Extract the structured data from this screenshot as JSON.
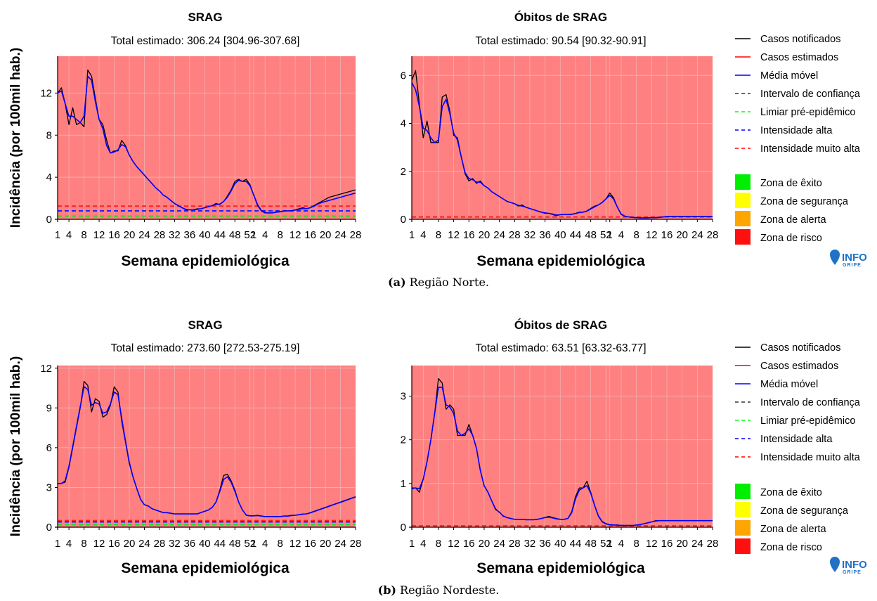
{
  "figure": {
    "captions": [
      {
        "label": "(a)",
        "text": "Região Norte."
      },
      {
        "label": "(b)",
        "text": "Região Nordeste."
      }
    ],
    "ylabel": "Incidência (por 100mil hab.)",
    "xlabel": "Semana epidemiológica",
    "x_tick_labels": [
      "1",
      "4",
      "8",
      "12",
      "16",
      "20",
      "24",
      "28",
      "32",
      "36",
      "40",
      "44",
      "48",
      "52",
      "1",
      "4",
      "8",
      "12",
      "16",
      "20",
      "24",
      "28"
    ],
    "legend_lines": [
      {
        "label": "Casos notificados",
        "color": "#000000",
        "dash": "solid"
      },
      {
        "label": "Casos estimados",
        "color": "#ff0000",
        "dash": "solid"
      },
      {
        "label": "Média móvel",
        "color": "#0000ff",
        "dash": "solid"
      },
      {
        "label": "Intervalo de confiança",
        "color": "#333333",
        "dash": "dashed"
      },
      {
        "label": "Limiar pré-epidêmico",
        "color": "#00ff00",
        "dash": "dashed"
      },
      {
        "label": "Intensidade alta",
        "color": "#0000ff",
        "dash": "dashed"
      },
      {
        "label": "Intensidade muito alta",
        "color": "#ff0000",
        "dash": "dashed"
      }
    ],
    "legend_zones": [
      {
        "label": "Zona de êxito",
        "color": "#00ee00"
      },
      {
        "label": "Zona de segurança",
        "color": "#ffff00"
      },
      {
        "label": "Zona de alerta",
        "color": "#ffa500"
      },
      {
        "label": "Zona de risco",
        "color": "#ff1010"
      }
    ],
    "logo": {
      "main": "INFO",
      "sub": "GRIPE"
    },
    "colors": {
      "risk_background": "#ff8080",
      "grid": "#f0b0b0"
    }
  },
  "chart_data": [
    {
      "type": "line",
      "title": "SRAG",
      "subtitle": "Total estimado: 306.24 [304.96-307.68]",
      "xlabel": "Semana epidemiológica",
      "ylabel": "Incidência (por 100mil hab.)",
      "x": [
        1,
        2,
        3,
        4,
        5,
        6,
        7,
        8,
        9,
        10,
        11,
        12,
        13,
        14,
        15,
        16,
        17,
        18,
        19,
        20,
        21,
        22,
        23,
        24,
        25,
        26,
        27,
        28,
        29,
        30,
        31,
        32,
        33,
        34,
        35,
        36,
        37,
        38,
        39,
        40,
        41,
        42,
        43,
        44,
        45,
        46,
        47,
        48,
        49,
        50,
        51,
        52,
        53,
        54,
        55,
        56,
        57,
        58,
        59,
        60,
        61,
        62,
        63,
        64,
        65,
        66,
        67,
        68,
        69,
        70,
        71,
        72,
        73,
        74,
        75,
        76,
        77,
        78,
        79,
        80
      ],
      "y_ticks": [
        0,
        4,
        8,
        12
      ],
      "ylim": [
        0,
        15.5
      ],
      "series": [
        {
          "name": "Casos notificados",
          "values": [
            12,
            12.5,
            11,
            9,
            10.6,
            9,
            9.2,
            8.8,
            14.2,
            13.6,
            11.5,
            9.5,
            9,
            7.5,
            6.3,
            6.5,
            6.5,
            7.5,
            7,
            6.1,
            5.5,
            5,
            4.6,
            4.2,
            3.8,
            3.4,
            3,
            2.7,
            2.3,
            2.1,
            1.8,
            1.5,
            1.3,
            1.1,
            0.9,
            0.9,
            0.9,
            1,
            1,
            1.1,
            1.2,
            1.3,
            1.5,
            1.4,
            1.7,
            2.2,
            2.8,
            3.6,
            3.8,
            3.6,
            3.8,
            3.3,
            2.3,
            1.3,
            0.8,
            0.6,
            0.6,
            0.6,
            0.7,
            0.7,
            0.8,
            0.8,
            0.8,
            0.9,
            1,
            1.1,
            1,
            1.1,
            1.3,
            1.5,
            1.7,
            1.9,
            2.1,
            2.2,
            2.3,
            2.4,
            2.5,
            2.6,
            2.7,
            2.8
          ]
        },
        {
          "name": "Média móvel",
          "values": [
            12,
            12.2,
            11,
            9.8,
            9.8,
            9.5,
            9.2,
            9.8,
            13.6,
            13.2,
            11.2,
            9.5,
            8.6,
            7,
            6.3,
            6.4,
            6.6,
            7.1,
            6.9,
            6.1,
            5.5,
            5,
            4.6,
            4.2,
            3.8,
            3.4,
            3,
            2.7,
            2.3,
            2.1,
            1.8,
            1.5,
            1.3,
            1.1,
            0.95,
            0.9,
            0.9,
            0.95,
            1,
            1.1,
            1.2,
            1.3,
            1.4,
            1.45,
            1.7,
            2.1,
            2.7,
            3.4,
            3.7,
            3.6,
            3.6,
            3.2,
            2.3,
            1.4,
            0.85,
            0.65,
            0.6,
            0.62,
            0.68,
            0.72,
            0.78,
            0.8,
            0.82,
            0.88,
            0.95,
            1.02,
            1,
            1.1,
            1.25,
            1.45,
            1.6,
            1.7,
            1.8,
            1.9,
            2,
            2.1,
            2.2,
            2.3,
            2.4,
            2.5
          ]
        },
        {
          "name": "Intensidade muito alta",
          "constant": 1.25
        },
        {
          "name": "Intensidade alta",
          "constant": 0.8
        },
        {
          "name": "Limiar pré-epidêmico",
          "constant": 0.3
        }
      ]
    },
    {
      "type": "line",
      "title": "Óbitos de SRAG",
      "subtitle": "Total estimado: 90.54 [90.32-90.91]",
      "xlabel": "Semana epidemiológica",
      "x": [
        1,
        2,
        3,
        4,
        5,
        6,
        7,
        8,
        9,
        10,
        11,
        12,
        13,
        14,
        15,
        16,
        17,
        18,
        19,
        20,
        21,
        22,
        23,
        24,
        25,
        26,
        27,
        28,
        29,
        30,
        31,
        32,
        33,
        34,
        35,
        36,
        37,
        38,
        39,
        40,
        41,
        42,
        43,
        44,
        45,
        46,
        47,
        48,
        49,
        50,
        51,
        52,
        53,
        54,
        55,
        56,
        57,
        58,
        59,
        60,
        61,
        62,
        63,
        64,
        65,
        66,
        67,
        68,
        69,
        70,
        71,
        72,
        73,
        74,
        75,
        76,
        77,
        78,
        79,
        80
      ],
      "y_ticks": [
        0,
        2,
        4,
        6
      ],
      "ylim": [
        0,
        6.8
      ],
      "series": [
        {
          "name": "Casos notificados",
          "values": [
            5.8,
            6.2,
            4.8,
            3.4,
            4.1,
            3.2,
            3.2,
            3.2,
            5.1,
            5.2,
            4.5,
            3.5,
            3.4,
            2.6,
            1.9,
            1.6,
            1.7,
            1.5,
            1.6,
            1.4,
            1.3,
            1.15,
            1.05,
            0.95,
            0.85,
            0.75,
            0.7,
            0.65,
            0.55,
            0.6,
            0.5,
            0.45,
            0.4,
            0.35,
            0.3,
            0.25,
            0.25,
            0.2,
            0.15,
            0.2,
            0.2,
            0.2,
            0.2,
            0.25,
            0.3,
            0.3,
            0.35,
            0.45,
            0.55,
            0.6,
            0.7,
            0.85,
            1.1,
            0.9,
            0.5,
            0.2,
            0.12,
            0.1,
            0.08,
            0.07,
            0.06,
            0.06,
            0.06,
            0.07,
            0.07,
            0.08,
            0.1,
            0.12,
            0.12,
            0.12,
            0.13,
            0.12,
            0.12,
            0.12,
            0.12,
            0.12,
            0.12,
            0.12,
            0.12,
            0.12
          ]
        },
        {
          "name": "Média móvel",
          "values": [
            5.7,
            5.4,
            4.7,
            3.8,
            3.7,
            3.4,
            3.2,
            3.3,
            4.7,
            5,
            4.4,
            3.6,
            3.3,
            2.6,
            1.95,
            1.7,
            1.65,
            1.55,
            1.55,
            1.4,
            1.3,
            1.15,
            1.05,
            0.95,
            0.85,
            0.75,
            0.7,
            0.65,
            0.58,
            0.55,
            0.5,
            0.45,
            0.4,
            0.35,
            0.3,
            0.27,
            0.25,
            0.22,
            0.18,
            0.19,
            0.2,
            0.2,
            0.21,
            0.24,
            0.28,
            0.3,
            0.34,
            0.43,
            0.52,
            0.6,
            0.7,
            0.85,
            1.0,
            0.85,
            0.5,
            0.22,
            0.13,
            0.1,
            0.08,
            0.07,
            0.06,
            0.06,
            0.06,
            0.07,
            0.07,
            0.08,
            0.1,
            0.11,
            0.12,
            0.12,
            0.12,
            0.12,
            0.12,
            0.12,
            0.12,
            0.12,
            0.12,
            0.12,
            0.12,
            0.12
          ]
        },
        {
          "name": "Intensidade muito alta",
          "constant": 0.1
        }
      ]
    },
    {
      "type": "line",
      "title": "SRAG",
      "subtitle": "Total estimado: 273.60 [272.53-275.19]",
      "xlabel": "Semana epidemiológica",
      "ylabel": "Incidência (por 100mil hab.)",
      "x": [
        1,
        2,
        3,
        4,
        5,
        6,
        7,
        8,
        9,
        10,
        11,
        12,
        13,
        14,
        15,
        16,
        17,
        18,
        19,
        20,
        21,
        22,
        23,
        24,
        25,
        26,
        27,
        28,
        29,
        30,
        31,
        32,
        33,
        34,
        35,
        36,
        37,
        38,
        39,
        40,
        41,
        42,
        43,
        44,
        45,
        46,
        47,
        48,
        49,
        50,
        51,
        52,
        53,
        54,
        55,
        56,
        57,
        58,
        59,
        60,
        61,
        62,
        63,
        64,
        65,
        66,
        67,
        68,
        69,
        70,
        71,
        72,
        73,
        74,
        75,
        76,
        77,
        78,
        79,
        80
      ],
      "y_ticks": [
        0,
        3,
        6,
        9,
        12
      ],
      "ylim": [
        0,
        12.2
      ],
      "series": [
        {
          "name": "Casos notificados",
          "values": [
            3.3,
            3.3,
            3.4,
            4.5,
            6,
            7.5,
            9,
            11,
            10.7,
            8.7,
            9.7,
            9.5,
            8.3,
            8.5,
            9.2,
            10.6,
            10.2,
            8,
            6.4,
            4.8,
            3.8,
            2.9,
            2.1,
            1.7,
            1.6,
            1.4,
            1.3,
            1.2,
            1.1,
            1.1,
            1.05,
            1,
            1,
            1,
            1,
            1,
            1,
            1,
            1.1,
            1.2,
            1.3,
            1.5,
            1.9,
            2.8,
            3.9,
            4,
            3.5,
            2.8,
            1.9,
            1.3,
            0.9,
            0.85,
            0.85,
            0.9,
            0.85,
            0.8,
            0.8,
            0.8,
            0.8,
            0.8,
            0.85,
            0.85,
            0.9,
            0.9,
            0.95,
            1,
            1,
            1.1,
            1.2,
            1.3,
            1.4,
            1.5,
            1.6,
            1.7,
            1.8,
            1.9,
            2,
            2.1,
            2.2,
            2.3
          ]
        },
        {
          "name": "Média móvel",
          "values": [
            3.3,
            3.3,
            3.5,
            4.6,
            6.1,
            7.6,
            9.1,
            10.6,
            10.4,
            9.2,
            9.4,
            9.3,
            8.6,
            8.7,
            9.3,
            10.2,
            10,
            8.2,
            6.5,
            4.9,
            3.8,
            2.9,
            2.1,
            1.7,
            1.6,
            1.4,
            1.3,
            1.2,
            1.1,
            1.1,
            1.05,
            1,
            1,
            1,
            1,
            1,
            1,
            1,
            1.1,
            1.2,
            1.3,
            1.5,
            1.9,
            2.7,
            3.6,
            3.8,
            3.4,
            2.7,
            1.9,
            1.3,
            0.92,
            0.86,
            0.86,
            0.88,
            0.84,
            0.8,
            0.8,
            0.8,
            0.8,
            0.8,
            0.84,
            0.84,
            0.88,
            0.9,
            0.94,
            0.98,
            1,
            1.08,
            1.18,
            1.28,
            1.38,
            1.48,
            1.58,
            1.68,
            1.78,
            1.88,
            1.98,
            2.08,
            2.18,
            2.28
          ]
        },
        {
          "name": "Intensidade muito alta",
          "constant": 0.5
        },
        {
          "name": "Intensidade alta",
          "constant": 0.4
        },
        {
          "name": "Limiar pré-epidêmico",
          "constant": 0.2
        }
      ]
    },
    {
      "type": "line",
      "title": "Óbitos de SRAG",
      "subtitle": "Total estimado: 63.51 [63.32-63.77]",
      "xlabel": "Semana epidemiológica",
      "x": [
        1,
        2,
        3,
        4,
        5,
        6,
        7,
        8,
        9,
        10,
        11,
        12,
        13,
        14,
        15,
        16,
        17,
        18,
        19,
        20,
        21,
        22,
        23,
        24,
        25,
        26,
        27,
        28,
        29,
        30,
        31,
        32,
        33,
        34,
        35,
        36,
        37,
        38,
        39,
        40,
        41,
        42,
        43,
        44,
        45,
        46,
        47,
        48,
        49,
        50,
        51,
        52,
        53,
        54,
        55,
        56,
        57,
        58,
        59,
        60,
        61,
        62,
        63,
        64,
        65,
        66,
        67,
        68,
        69,
        70,
        71,
        72,
        73,
        74,
        75,
        76,
        77,
        78,
        79,
        80
      ],
      "y_ticks": [
        0,
        1,
        2,
        3
      ],
      "ylim": [
        0,
        3.7
      ],
      "series": [
        {
          "name": "Casos notificados",
          "values": [
            0.9,
            0.9,
            0.8,
            1.1,
            1.5,
            2,
            2.6,
            3.4,
            3.3,
            2.7,
            2.8,
            2.7,
            2.1,
            2.1,
            2.1,
            2.35,
            2.1,
            1.8,
            1.3,
            0.95,
            0.8,
            0.6,
            0.4,
            0.35,
            0.25,
            0.22,
            0.2,
            0.18,
            0.18,
            0.18,
            0.17,
            0.17,
            0.17,
            0.18,
            0.2,
            0.22,
            0.25,
            0.22,
            0.2,
            0.18,
            0.18,
            0.2,
            0.35,
            0.7,
            0.9,
            0.9,
            1.05,
            0.8,
            0.5,
            0.25,
            0.12,
            0.07,
            0.06,
            0.05,
            0.05,
            0.04,
            0.04,
            0.04,
            0.04,
            0.05,
            0.06,
            0.08,
            0.1,
            0.12,
            0.15,
            0.15,
            0.15,
            0.15,
            0.15,
            0.15,
            0.15,
            0.15,
            0.15,
            0.15,
            0.15,
            0.15,
            0.15,
            0.15,
            0.15,
            0.15
          ]
        },
        {
          "name": "Média móvel",
          "values": [
            0.88,
            0.9,
            0.88,
            1.1,
            1.5,
            2,
            2.6,
            3.2,
            3.2,
            2.8,
            2.75,
            2.6,
            2.2,
            2.1,
            2.15,
            2.25,
            2.1,
            1.8,
            1.3,
            0.95,
            0.8,
            0.6,
            0.42,
            0.34,
            0.26,
            0.22,
            0.2,
            0.18,
            0.18,
            0.18,
            0.17,
            0.17,
            0.17,
            0.18,
            0.2,
            0.22,
            0.23,
            0.21,
            0.19,
            0.18,
            0.18,
            0.2,
            0.33,
            0.65,
            0.85,
            0.9,
            0.95,
            0.78,
            0.5,
            0.26,
            0.13,
            0.08,
            0.06,
            0.05,
            0.05,
            0.04,
            0.04,
            0.04,
            0.04,
            0.05,
            0.06,
            0.08,
            0.1,
            0.12,
            0.14,
            0.15,
            0.15,
            0.15,
            0.15,
            0.15,
            0.15,
            0.15,
            0.15,
            0.15,
            0.15,
            0.15,
            0.15,
            0.15,
            0.15,
            0.15
          ]
        },
        {
          "name": "Intensidade muito alta",
          "constant": 0.03
        }
      ]
    }
  ]
}
